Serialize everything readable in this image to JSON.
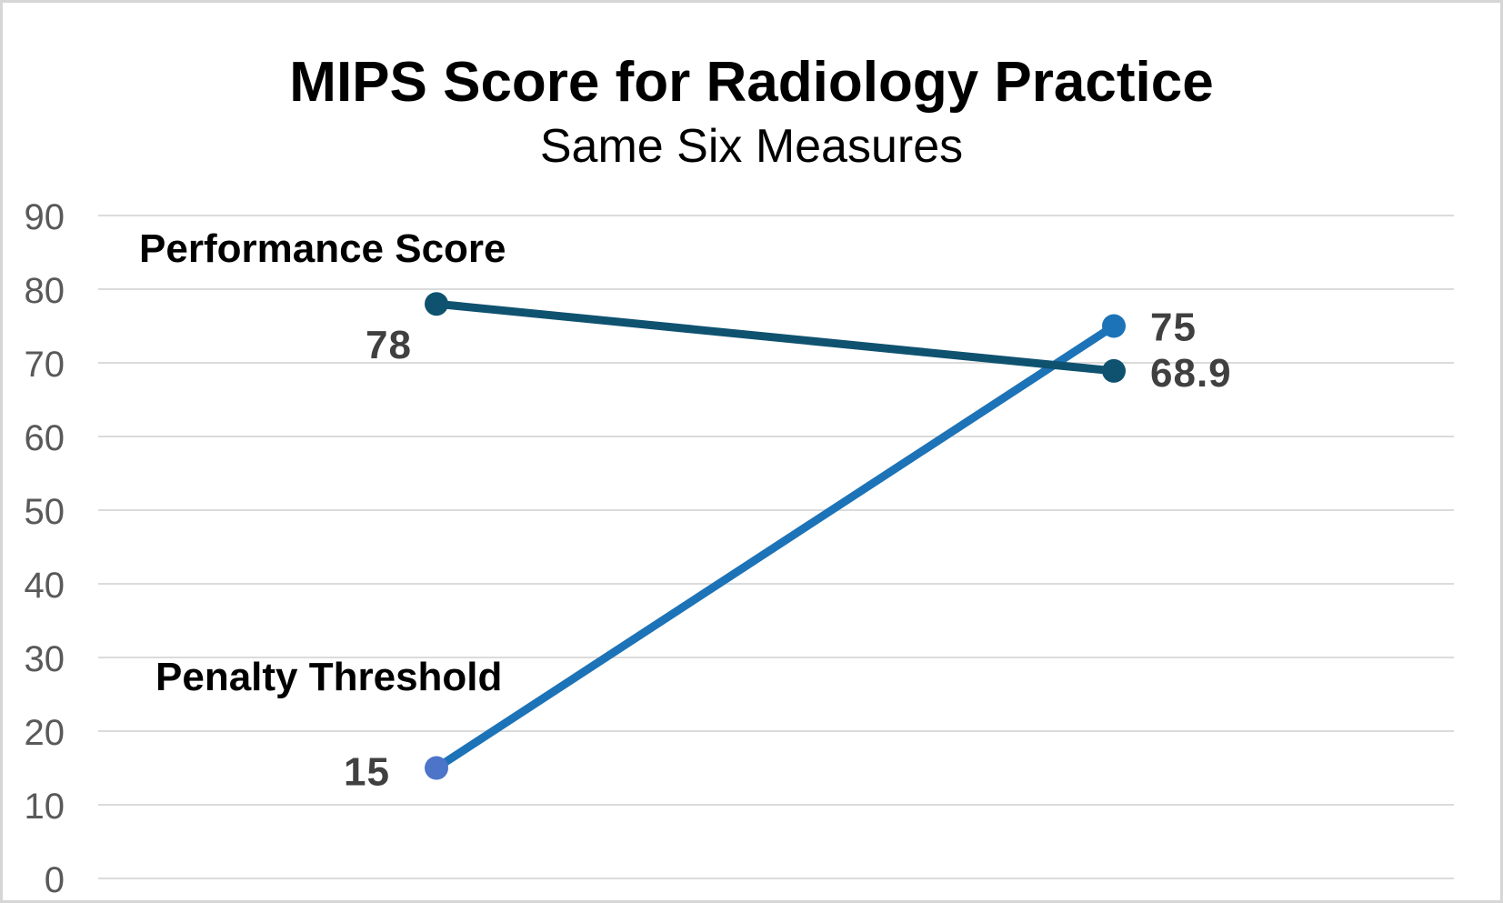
{
  "frame": {
    "background": "#FFFFFF",
    "border_color": "#D6D6D6"
  },
  "chart_data": {
    "type": "line",
    "title": "MIPS Score for Radiology Practice",
    "subtitle": "Same Six Measures",
    "x": [
      0,
      1
    ],
    "x_axis_labels": [],
    "series": [
      {
        "name": "Performance Score",
        "values": [
          78,
          68.9
        ],
        "data_labels": [
          "78",
          "68.9"
        ],
        "line_color": "#0F5270",
        "marker_colors": [
          "#0F5270",
          "#0F5270"
        ]
      },
      {
        "name": "Penalty Threshold",
        "values": [
          15,
          75
        ],
        "data_labels": [
          "15",
          "75"
        ],
        "line_color": "#1D73B7",
        "marker_colors": [
          "#4C74C9",
          "#1D73B7"
        ]
      }
    ],
    "ylim": [
      0,
      90
    ],
    "yticks": [
      0,
      10,
      20,
      30,
      40,
      50,
      60,
      70,
      80,
      90
    ],
    "xlabel": "",
    "ylabel": "",
    "grid": "horizontal",
    "gridline_color": "#DBDBDB",
    "legend_position": "none",
    "axis_tick_label_color": "#595959",
    "data_label_color": "#404040",
    "series_name_label_color": "#000000"
  }
}
